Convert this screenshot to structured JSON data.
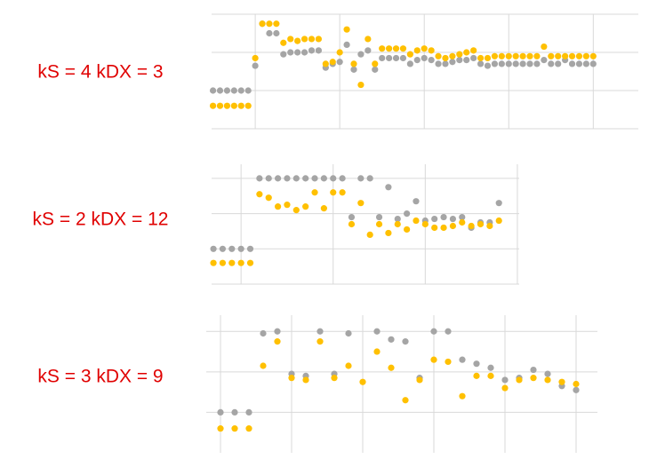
{
  "chart_data": [
    {
      "type": "scatter",
      "title": "kS = 4 kDX = 3",
      "x": [
        0,
        1,
        2,
        3,
        4,
        5,
        6,
        7,
        8,
        9,
        10,
        11,
        12,
        13,
        14,
        15,
        16,
        17,
        18,
        19,
        20,
        21,
        22,
        23,
        24,
        25,
        26,
        27,
        28,
        29,
        30,
        31,
        32,
        33,
        34,
        35,
        36,
        37,
        38,
        39,
        40,
        41,
        42,
        43,
        44,
        45,
        46,
        47,
        48,
        49,
        50,
        51,
        52,
        53,
        54
      ],
      "series": [
        {
          "color": "#a5a5a5",
          "values": [
            1,
            1,
            1,
            1,
            1,
            1,
            1.65,
            2.75,
            2.5,
            2.5,
            1.95,
            2,
            2,
            2,
            2.05,
            2.05,
            1.6,
            1.7,
            1.75,
            2.2,
            1.55,
            1.95,
            2.05,
            1.55,
            1.85,
            1.85,
            1.85,
            1.85,
            1.7,
            1.8,
            1.85,
            1.8,
            1.7,
            1.7,
            1.75,
            1.8,
            1.8,
            1.85,
            1.7,
            1.65,
            1.7,
            1.7,
            1.7,
            1.7,
            1.7,
            1.7,
            1.7,
            1.8,
            1.7,
            1.7,
            1.8,
            1.7,
            1.7,
            1.7,
            1.7
          ]
        },
        {
          "color": "#ffc000",
          "values": [
            0.6,
            0.6,
            0.6,
            0.6,
            0.6,
            0.6,
            1.85,
            2.75,
            2.75,
            2.75,
            2.25,
            2.35,
            2.3,
            2.35,
            2.35,
            2.35,
            1.7,
            1.75,
            2,
            2.6,
            1.7,
            1.15,
            2.35,
            1.7,
            2.1,
            2.1,
            2.1,
            2.1,
            1.95,
            2.05,
            2.1,
            2.05,
            1.9,
            1.85,
            1.9,
            1.95,
            2,
            2.05,
            1.85,
            1.85,
            1.9,
            1.9,
            1.9,
            1.9,
            1.9,
            1.9,
            1.9,
            2.15,
            1.9,
            1.9,
            1.9,
            1.9,
            1.9,
            1.9,
            1.9
          ]
        }
      ],
      "xlim": [
        -0.2,
        60.4
      ],
      "xticks": [
        6,
        18,
        30,
        42,
        54
      ],
      "ylim": [
        0,
        3
      ],
      "yticks": [
        0,
        1,
        2,
        3
      ],
      "grid": true
    },
    {
      "type": "scatter",
      "title": "kS = 2 kDX = 12",
      "x": [
        0,
        1,
        2,
        3,
        4,
        5,
        6,
        7,
        8,
        9,
        10,
        11,
        12,
        13,
        14,
        15,
        16,
        17,
        18,
        19,
        20,
        21,
        22,
        23,
        24,
        25,
        26,
        27,
        28,
        29,
        30,
        31
      ],
      "series": [
        {
          "color": "#a5a5a5",
          "values": [
            1,
            1,
            1,
            1,
            1,
            3,
            3,
            3,
            3,
            3,
            3,
            3,
            3,
            3,
            3,
            1.9,
            3,
            3,
            1.9,
            2.75,
            1.85,
            2,
            2.35,
            1.8,
            1.85,
            1.9,
            1.85,
            1.9,
            1.6,
            1.75,
            1.75,
            2.3
          ]
        },
        {
          "color": "#ffc000",
          "values": [
            0.6,
            0.6,
            0.6,
            0.6,
            0.6,
            2.55,
            2.45,
            2.2,
            2.25,
            2.1,
            2.2,
            2.6,
            2.15,
            2.6,
            2.6,
            1.7,
            2.3,
            1.4,
            1.7,
            1.45,
            1.7,
            1.55,
            1.8,
            1.7,
            1.6,
            1.6,
            1.65,
            1.75,
            1.65,
            1.7,
            1.65,
            1.8
          ]
        }
      ],
      "xlim": [
        -0.2,
        33.2
      ],
      "xticks": [
        3,
        13,
        23,
        33
      ],
      "ylim": [
        0,
        3.4
      ],
      "yticks": [
        0,
        1,
        2,
        3
      ],
      "grid": true
    },
    {
      "type": "scatter",
      "title": "kS = 3 kDX = 9",
      "x": [
        0,
        1,
        2,
        3,
        4,
        5,
        6,
        7,
        8,
        9,
        10,
        11,
        12,
        13,
        14,
        15,
        16,
        17,
        18,
        19,
        20,
        21,
        22,
        23,
        24,
        25
      ],
      "series": [
        {
          "color": "#a5a5a5",
          "values": [
            0,
            0,
            0,
            1.95,
            2,
            0.95,
            0.9,
            2,
            0.95,
            1.95,
            null,
            2,
            1.8,
            1.75,
            0.85,
            2,
            2,
            1.3,
            1.2,
            1.1,
            0.8,
            0.85,
            1.05,
            0.95,
            0.65,
            0.55
          ]
        },
        {
          "color": "#ffc000",
          "values": [
            -0.4,
            -0.4,
            -0.4,
            1.15,
            1.75,
            0.85,
            0.8,
            1.75,
            0.85,
            1.15,
            0.75,
            1.5,
            1.1,
            0.3,
            0.8,
            1.3,
            1.25,
            0.4,
            0.9,
            0.9,
            0.6,
            0.8,
            0.85,
            0.8,
            0.75,
            0.7
          ]
        }
      ],
      "xlim": [
        -1,
        26.5
      ],
      "xticks": [
        0,
        5,
        10,
        15,
        20,
        25
      ],
      "ylim": [
        -1,
        2.4
      ],
      "yticks": [
        0,
        1,
        2
      ],
      "grid": true
    }
  ]
}
